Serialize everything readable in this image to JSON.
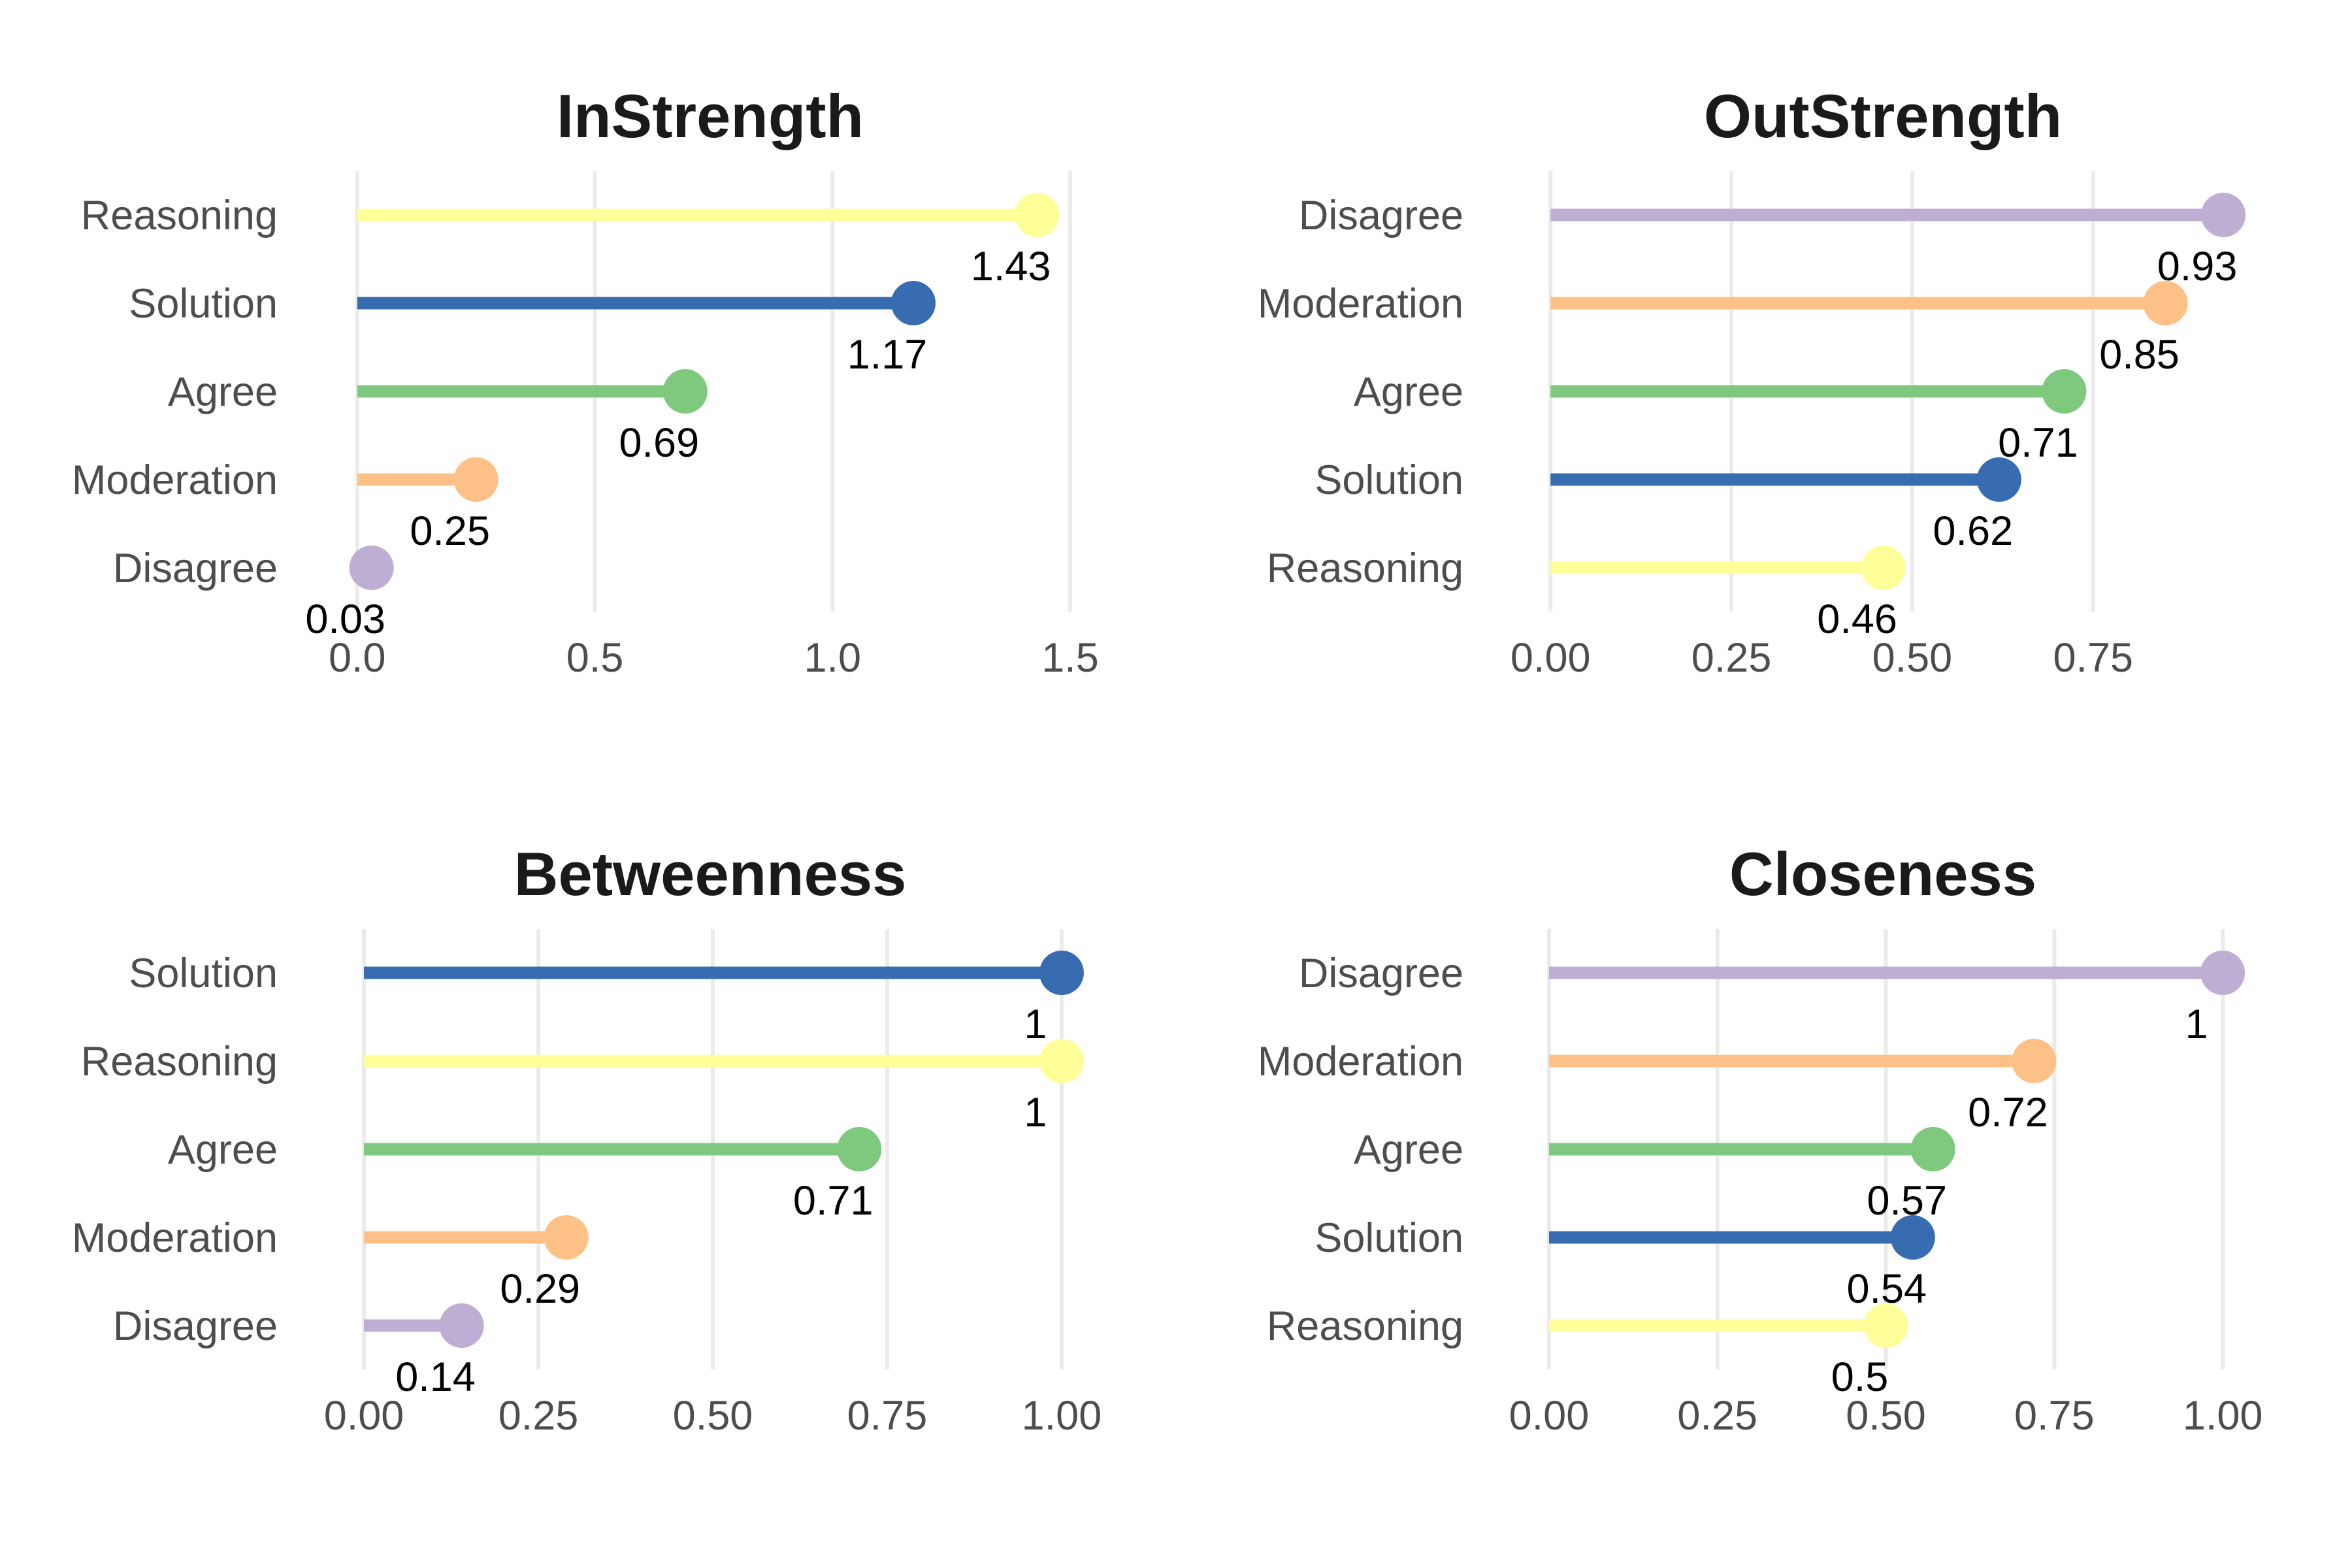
{
  "colors": {
    "Reasoning": "#FFFF99",
    "Solution": "#386CB0",
    "Agree": "#7FC97F",
    "Moderation": "#FDC086",
    "Disagree": "#BEAED4"
  },
  "chart_data": [
    {
      "type": "lollipop",
      "title": "InStrength",
      "categories": [
        "Reasoning",
        "Solution",
        "Agree",
        "Moderation",
        "Disagree"
      ],
      "values": [
        1.43,
        1.17,
        0.69,
        0.25,
        0.03
      ],
      "value_labels": [
        "1.43",
        "1.17",
        "0.69",
        "0.25",
        "0.03"
      ],
      "xlim": [
        -0.03,
        1.57
      ],
      "xticks": [
        0,
        0.5,
        1,
        1.5
      ],
      "xtick_labels": [
        "0.0",
        "0.5",
        "1.0",
        "1.5"
      ],
      "grid": true
    },
    {
      "type": "lollipop",
      "title": "OutStrength",
      "categories": [
        "Disagree",
        "Moderation",
        "Agree",
        "Solution",
        "Reasoning"
      ],
      "values": [
        0.93,
        0.85,
        0.71,
        0.62,
        0.46
      ],
      "value_labels": [
        "0.93",
        "0.85",
        "0.71",
        "0.62",
        "0.46"
      ],
      "xlim": [
        -0.03,
        0.985
      ],
      "xticks": [
        0,
        0.25,
        0.5,
        0.75
      ],
      "xtick_labels": [
        "0.00",
        "0.25",
        "0.50",
        "0.75"
      ],
      "grid": true
    },
    {
      "type": "lollipop",
      "title": "Betweenness",
      "categories": [
        "Solution",
        "Reasoning",
        "Agree",
        "Moderation",
        "Disagree"
      ],
      "values": [
        1,
        1,
        0.71,
        0.29,
        0.14
      ],
      "value_labels": [
        "1",
        "1",
        "0.71",
        "0.29",
        "0.14"
      ],
      "xlim": [
        -0.03,
        1.06
      ],
      "xticks": [
        0,
        0.25,
        0.5,
        0.75,
        1
      ],
      "xtick_labels": [
        "0.00",
        "0.25",
        "0.50",
        "0.75",
        "1.00"
      ],
      "grid": true
    },
    {
      "type": "lollipop",
      "title": "Closeness",
      "categories": [
        "Disagree",
        "Moderation",
        "Agree",
        "Solution",
        "Reasoning"
      ],
      "values": [
        1,
        0.72,
        0.57,
        0.54,
        0.5
      ],
      "value_labels": [
        "1",
        "0.72",
        "0.57",
        "0.54",
        "0.5"
      ],
      "xlim": [
        -0.03,
        1.06
      ],
      "xticks": [
        0,
        0.25,
        0.5,
        0.75,
        1
      ],
      "xtick_labels": [
        "0.00",
        "0.25",
        "0.50",
        "0.75",
        "1.00"
      ],
      "grid": true
    }
  ]
}
